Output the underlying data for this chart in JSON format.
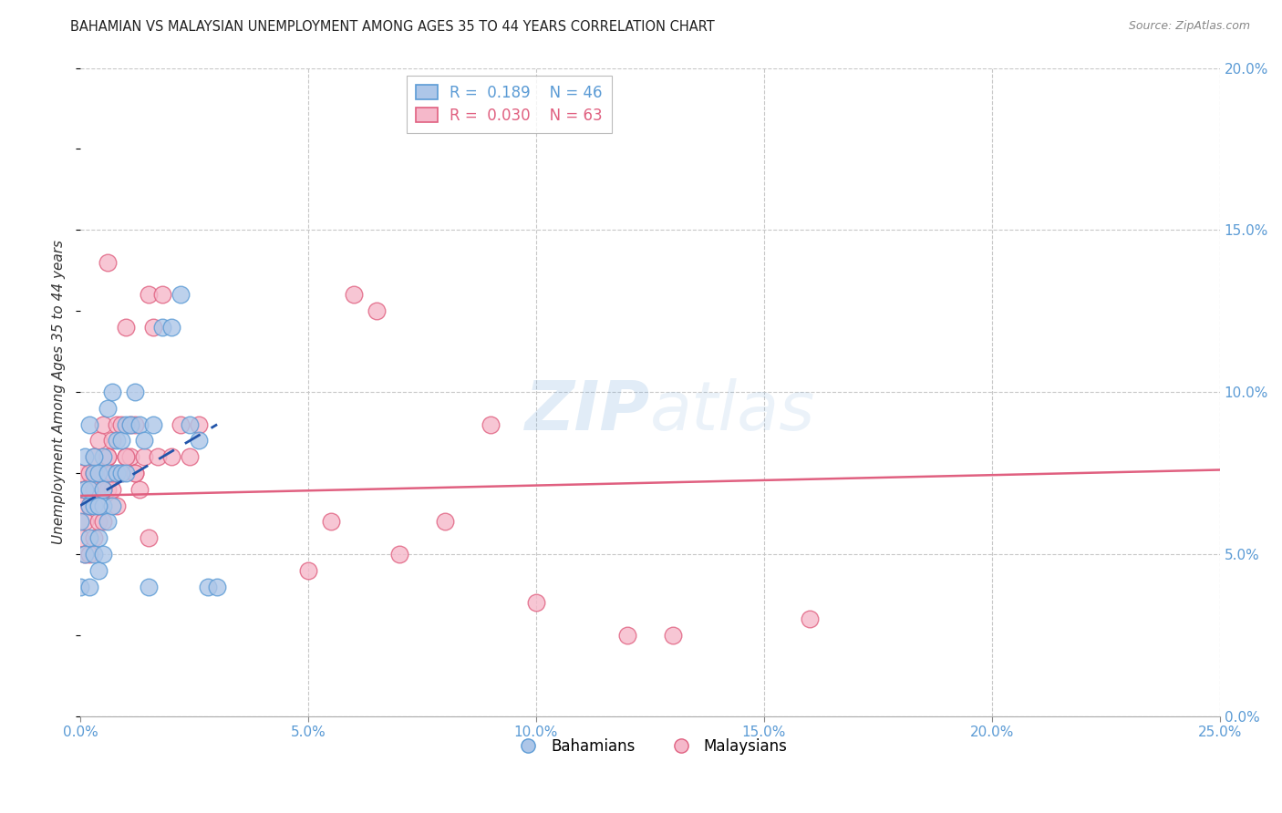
{
  "title": "BAHAMIAN VS MALAYSIAN UNEMPLOYMENT AMONG AGES 35 TO 44 YEARS CORRELATION CHART",
  "source": "Source: ZipAtlas.com",
  "ylabel": "Unemployment Among Ages 35 to 44 years",
  "xlim": [
    0.0,
    0.25
  ],
  "ylim": [
    0.0,
    0.2
  ],
  "xticks": [
    0.0,
    0.05,
    0.1,
    0.15,
    0.2,
    0.25
  ],
  "yticks_right": [
    0.0,
    0.05,
    0.1,
    0.15,
    0.2
  ],
  "tick_color": "#5b9bd5",
  "grid_color": "#c8c8c8",
  "background_color": "#ffffff",
  "bahamians": {
    "x": [
      0.0,
      0.0,
      0.001,
      0.001,
      0.002,
      0.002,
      0.002,
      0.002,
      0.003,
      0.003,
      0.003,
      0.004,
      0.004,
      0.004,
      0.005,
      0.005,
      0.005,
      0.006,
      0.006,
      0.006,
      0.007,
      0.007,
      0.008,
      0.008,
      0.009,
      0.009,
      0.01,
      0.01,
      0.011,
      0.012,
      0.013,
      0.014,
      0.015,
      0.016,
      0.018,
      0.02,
      0.022,
      0.024,
      0.026,
      0.028,
      0.03,
      0.001,
      0.002,
      0.003,
      0.004,
      0.005
    ],
    "y": [
      0.06,
      0.04,
      0.05,
      0.07,
      0.04,
      0.055,
      0.065,
      0.09,
      0.05,
      0.065,
      0.075,
      0.045,
      0.055,
      0.075,
      0.05,
      0.065,
      0.08,
      0.06,
      0.075,
      0.095,
      0.065,
      0.1,
      0.075,
      0.085,
      0.075,
      0.085,
      0.075,
      0.09,
      0.09,
      0.1,
      0.09,
      0.085,
      0.04,
      0.09,
      0.12,
      0.12,
      0.13,
      0.09,
      0.085,
      0.04,
      0.04,
      0.08,
      0.07,
      0.08,
      0.065,
      0.07
    ],
    "color": "#adc6e8",
    "edge_color": "#5b9bd5",
    "R": 0.189,
    "N": 46,
    "trend_color": "#2255aa",
    "trend_x": [
      0.0,
      0.03
    ],
    "trend_y": [
      0.065,
      0.09
    ]
  },
  "malaysians": {
    "x": [
      0.0,
      0.0,
      0.0,
      0.001,
      0.001,
      0.001,
      0.002,
      0.002,
      0.002,
      0.003,
      0.003,
      0.003,
      0.004,
      0.004,
      0.004,
      0.005,
      0.005,
      0.005,
      0.006,
      0.006,
      0.006,
      0.007,
      0.007,
      0.008,
      0.008,
      0.009,
      0.009,
      0.01,
      0.01,
      0.011,
      0.011,
      0.012,
      0.012,
      0.013,
      0.014,
      0.015,
      0.016,
      0.017,
      0.018,
      0.02,
      0.022,
      0.024,
      0.026,
      0.06,
      0.065,
      0.07,
      0.08,
      0.09,
      0.12,
      0.13,
      0.16,
      0.003,
      0.004,
      0.005,
      0.006,
      0.007,
      0.008,
      0.01,
      0.012,
      0.015,
      0.05,
      0.055,
      0.1
    ],
    "y": [
      0.055,
      0.065,
      0.075,
      0.05,
      0.06,
      0.07,
      0.05,
      0.065,
      0.075,
      0.055,
      0.07,
      0.08,
      0.06,
      0.075,
      0.085,
      0.06,
      0.075,
      0.09,
      0.07,
      0.08,
      0.14,
      0.07,
      0.085,
      0.075,
      0.09,
      0.075,
      0.09,
      0.08,
      0.12,
      0.08,
      0.09,
      0.075,
      0.09,
      0.07,
      0.08,
      0.13,
      0.12,
      0.08,
      0.13,
      0.08,
      0.09,
      0.08,
      0.09,
      0.13,
      0.125,
      0.05,
      0.06,
      0.09,
      0.025,
      0.025,
      0.03,
      0.075,
      0.065,
      0.07,
      0.08,
      0.075,
      0.065,
      0.08,
      0.075,
      0.055,
      0.045,
      0.06,
      0.035
    ],
    "color": "#f5b8ca",
    "edge_color": "#e06080",
    "R": 0.03,
    "N": 63,
    "trend_color": "#e06080",
    "trend_x": [
      0.0,
      0.25
    ],
    "trend_y": [
      0.068,
      0.076
    ]
  }
}
